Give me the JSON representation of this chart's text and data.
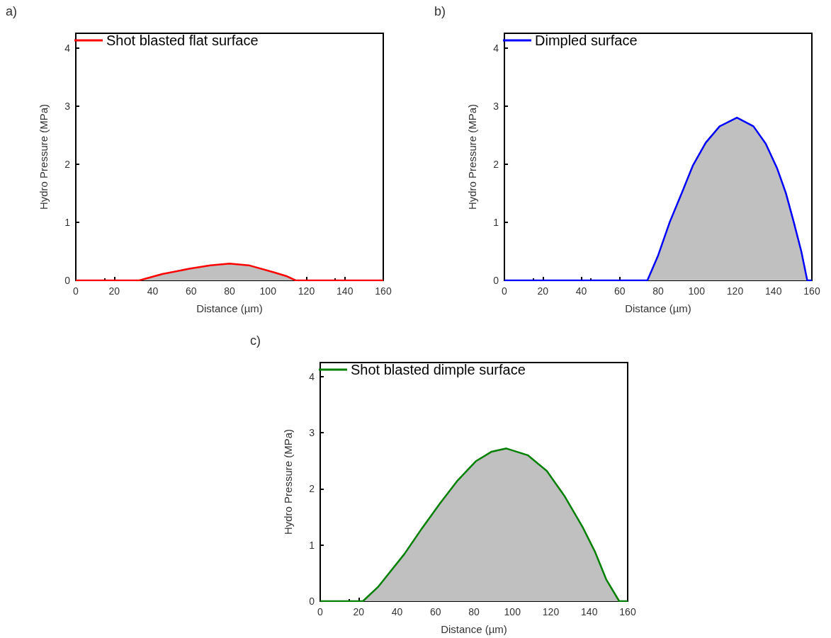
{
  "chart_data": [
    {
      "type": "area",
      "annotations": [
        "a)"
      ],
      "xlabel": "Distance (µm)",
      "ylabel": "Hydro Pressure (MPa)",
      "xlim": [
        0,
        160
      ],
      "xticks": [
        0,
        20,
        40,
        60,
        80,
        100,
        120,
        140,
        160
      ],
      "ylim": [
        0,
        4.25
      ],
      "yticks": [
        0,
        1,
        2,
        3,
        4
      ],
      "grid": false,
      "legend": "top left",
      "marker": "none",
      "series": [
        {
          "name": "Shot blasted flat surface",
          "color": "#ff0000",
          "x": [
            0,
            33,
            45,
            59,
            70,
            80,
            90,
            103,
            110,
            114.4,
            130,
            160
          ],
          "values": [
            0,
            0,
            0.11,
            0.2,
            0.26,
            0.29,
            0.26,
            0.14,
            0.07,
            0,
            0,
            0
          ]
        }
      ]
    },
    {
      "type": "area",
      "annotations": [
        "b)"
      ],
      "xlabel": "Distance (µm)",
      "ylabel": "Hydro Pressure (MPa)",
      "xlim": [
        0,
        160
      ],
      "xticks": [
        0,
        20,
        40,
        60,
        80,
        100,
        120,
        140,
        160
      ],
      "ylim": [
        0,
        4.25
      ],
      "yticks": [
        0,
        1,
        2,
        3,
        4
      ],
      "grid": false,
      "legend": "top left",
      "marker": "none",
      "series": [
        {
          "name": "Dimpled surface",
          "color": "#0000ff",
          "x": [
            0,
            74.4,
            80,
            86,
            92.5,
            98,
            104.8,
            112,
            121,
            129.6,
            136,
            142,
            146.5,
            150.6,
            154.5,
            157.6,
            160
          ],
          "values": [
            0,
            0,
            0.43,
            1.0,
            1.52,
            1.97,
            2.37,
            2.65,
            2.8,
            2.65,
            2.35,
            1.92,
            1.5,
            1.0,
            0.5,
            0,
            0
          ]
        }
      ]
    },
    {
      "type": "area",
      "annotations": [
        "c)"
      ],
      "xlabel": "Distance (µm)",
      "ylabel": "Hydro Pressure (MPa)",
      "xlim": [
        0,
        160
      ],
      "xticks": [
        0,
        20,
        40,
        60,
        80,
        100,
        120,
        140,
        160
      ],
      "ylim": [
        0,
        4.25
      ],
      "yticks": [
        0,
        1,
        2,
        3,
        4
      ],
      "grid": false,
      "legend": "top left",
      "marker": "none",
      "series": [
        {
          "name": "Shot blasted dimple surface",
          "color": "#008000",
          "x": [
            0,
            22.2,
            30,
            43.8,
            53,
            62.3,
            71.5,
            80.9,
            89,
            96.9,
            108,
            117.9,
            127,
            136.4,
            143,
            148.8,
            155.6,
            160
          ],
          "values": [
            0,
            0,
            0.25,
            0.84,
            1.3,
            1.74,
            2.15,
            2.49,
            2.66,
            2.72,
            2.6,
            2.32,
            1.88,
            1.33,
            0.88,
            0.39,
            0,
            0
          ]
        }
      ]
    }
  ]
}
